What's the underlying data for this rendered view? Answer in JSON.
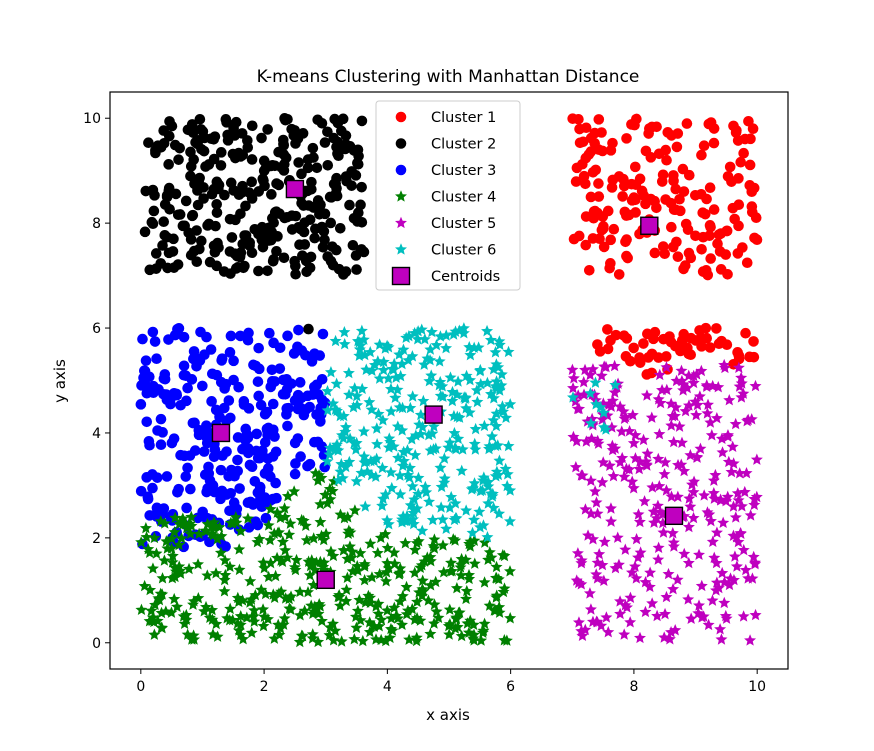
{
  "chart_data": {
    "type": "scatter",
    "title": "K-means Clustering with Manhattan Distance",
    "xlabel": "x axis",
    "ylabel": "y axis",
    "xlim": [
      -0.5,
      10.5
    ],
    "ylim": [
      -0.5,
      10.5
    ],
    "xticks": [
      0,
      2,
      4,
      6,
      8,
      10
    ],
    "yticks": [
      0,
      2,
      4,
      6,
      8,
      10
    ],
    "xtick_labels": [
      "0",
      "2",
      "4",
      "6",
      "8",
      "10"
    ],
    "ytick_labels": [
      "0",
      "2",
      "4",
      "6",
      "8",
      "10"
    ],
    "grid": false,
    "legend_position": "top-center",
    "series": [
      {
        "name": "Cluster 1",
        "color": "#ff0000",
        "marker": "circle",
        "regions": [
          {
            "x": [
              7.0,
              10.0
            ],
            "y": [
              7.0,
              10.0
            ],
            "count": 190
          },
          {
            "x": [
              7.4,
              10.0
            ],
            "y": [
              5.0,
              6.0
            ],
            "count": 55,
            "upper_left_band": true
          }
        ]
      },
      {
        "name": "Cluster 2",
        "color": "#000000",
        "marker": "circle",
        "regions": [
          {
            "x": [
              0.0,
              3.6
            ],
            "y": [
              7.0,
              10.0
            ],
            "count": 320
          },
          {
            "points": [
              [
                2.72,
                5.98
              ],
              [
                3.62,
                7.45
              ]
            ]
          }
        ]
      },
      {
        "name": "Cluster 3",
        "color": "#0000ff",
        "marker": "circle",
        "regions": [
          {
            "x": [
              0.0,
              3.0
            ],
            "y": [
              1.8,
              6.0
            ],
            "count": 300,
            "lower_right_cut": true
          }
        ]
      },
      {
        "name": "Cluster 4",
        "color": "#008000",
        "marker": "star",
        "regions": [
          {
            "x": [
              0.0,
              6.0
            ],
            "y": [
              0.0,
              3.3
            ],
            "count": 430,
            "upper_triangle_cut": true
          }
        ]
      },
      {
        "name": "Cluster 5",
        "color": "#bf00bf",
        "marker": "star",
        "regions": [
          {
            "x": [
              7.0,
              10.0
            ],
            "y": [
              0.0,
              5.3
            ],
            "count": 320
          }
        ]
      },
      {
        "name": "Cluster 6",
        "color": "#00bfbf",
        "marker": "star",
        "regions": [
          {
            "x": [
              3.0,
              6.0
            ],
            "y": [
              2.0,
              6.0
            ],
            "count": 300,
            "lower_left_cut": true
          },
          {
            "x": [
              7.0,
              7.7
            ],
            "y": [
              4.0,
              5.2
            ],
            "count": 10
          }
        ]
      },
      {
        "name": "Centroids",
        "color": "#bf00bf",
        "marker": "square",
        "points": [
          [
            8.25,
            7.95
          ],
          [
            2.5,
            8.65
          ],
          [
            1.3,
            4.0
          ],
          [
            3.0,
            1.2
          ],
          [
            8.65,
            2.42
          ],
          [
            4.75,
            4.35
          ]
        ]
      }
    ],
    "legend_labels": [
      "Cluster 1",
      "Cluster 2",
      "Cluster 3",
      "Cluster 4",
      "Cluster 5",
      "Cluster 6",
      "Centroids"
    ]
  }
}
